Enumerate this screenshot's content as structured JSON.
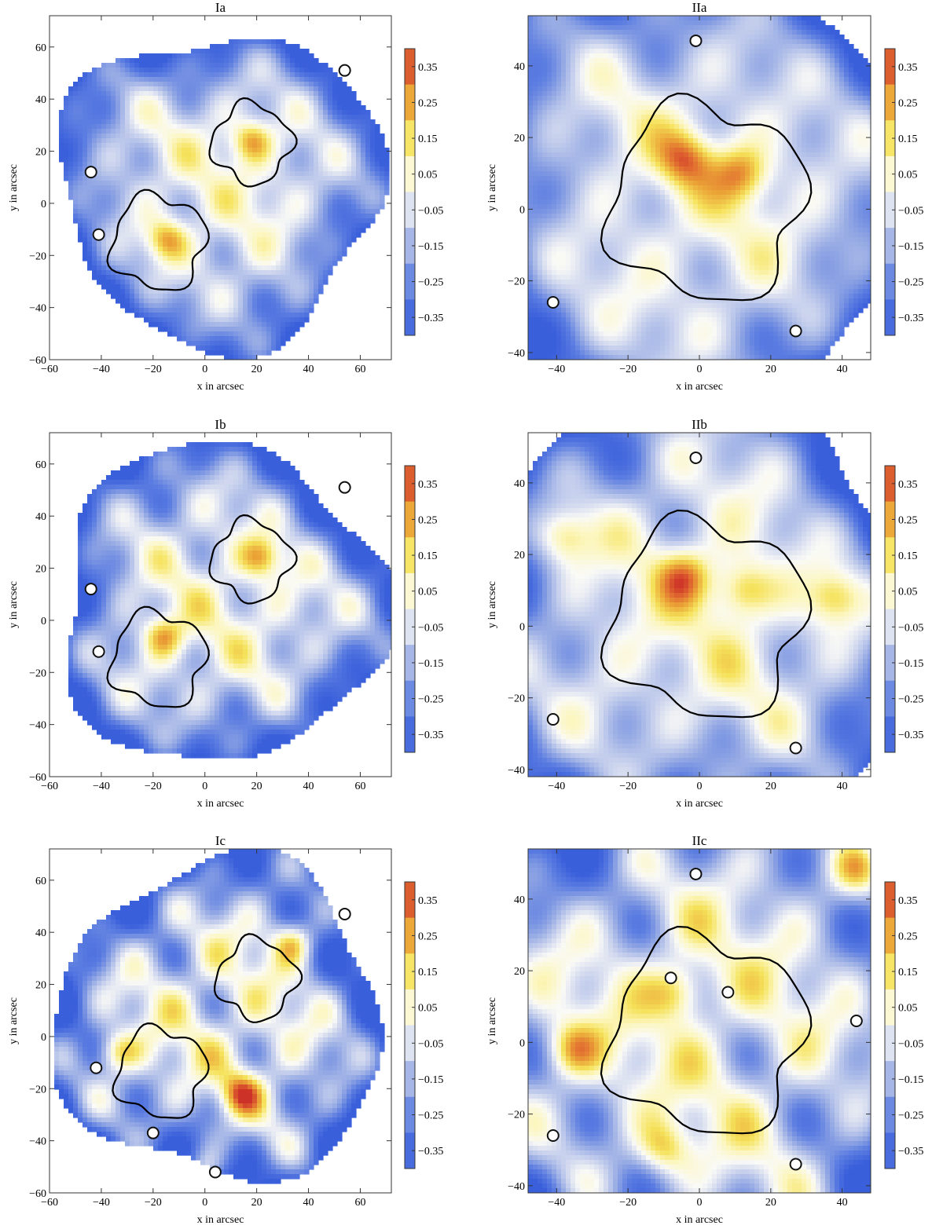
{
  "chart_data": [
    {
      "type": "heatmap",
      "id": "Ia",
      "title": "Ia",
      "xlabel": "x in arcsec",
      "ylabel": "y in arcsec",
      "xlim": [
        -60,
        72
      ],
      "ylim": [
        -60,
        72
      ],
      "xticks": [
        -60,
        -40,
        -20,
        0,
        20,
        40,
        60
      ],
      "yticks": [
        -60,
        -40,
        -20,
        0,
        20,
        40,
        60
      ],
      "colorbar": {
        "labels": [
          "0.35",
          "0.25",
          "0.15",
          "0.05",
          "−0.05",
          "−0.15",
          "−0.25",
          "−0.35"
        ],
        "range": [
          -0.4,
          0.4
        ]
      },
      "field_scale": 0.55,
      "shape": {
        "cx": 6,
        "cy": 6,
        "rx": 62,
        "ry": 60
      },
      "curves": [
        {
          "cx": -18,
          "cy": -15,
          "r": 18
        },
        {
          "cx": 18,
          "cy": 23,
          "r": 15
        }
      ],
      "hot": [
        [
          -15,
          -14
        ],
        [
          18,
          24
        ]
      ],
      "holes": [
        [
          54,
          51
        ],
        [
          -44,
          12
        ],
        [
          -41,
          -12
        ]
      ]
    },
    {
      "type": "heatmap",
      "id": "IIa",
      "title": "IIa",
      "xlabel": "x in arcsec",
      "ylabel": "y in arcsec",
      "xlim": [
        -48,
        48
      ],
      "ylim": [
        -42,
        54
      ],
      "xticks": [
        -40,
        -20,
        0,
        20,
        40
      ],
      "yticks": [
        -40,
        -20,
        0,
        20,
        40
      ],
      "colorbar": {
        "labels": [
          "0.35",
          "0.25",
          "0.15",
          "0.05",
          "−0.05",
          "−0.15",
          "−0.25",
          "−0.35"
        ],
        "range": [
          -0.4,
          0.4
        ]
      },
      "field_scale": 0.55,
      "shape": {
        "cx": 0,
        "cy": 4,
        "rx": 62,
        "ry": 64
      },
      "curves": [
        {
          "cx": 2,
          "cy": 2,
          "r": 27
        }
      ],
      "hot": [
        [
          -4,
          14
        ],
        [
          12,
          10
        ]
      ],
      "holes": [
        [
          -1,
          47
        ],
        [
          -41,
          -26
        ],
        [
          27,
          -34
        ]
      ]
    },
    {
      "type": "heatmap",
      "id": "Ib",
      "title": "Ib",
      "xlabel": "x in arcsec",
      "ylabel": "y in arcsec",
      "xlim": [
        -60,
        72
      ],
      "ylim": [
        -60,
        72
      ],
      "xticks": [
        -60,
        -40,
        -20,
        0,
        20,
        40,
        60
      ],
      "yticks": [
        -60,
        -40,
        -20,
        0,
        20,
        40,
        60
      ],
      "colorbar": {
        "labels": [
          "0.35",
          "0.25",
          "0.15",
          "0.05",
          "−0.05",
          "−0.15",
          "−0.25",
          "−0.35"
        ],
        "range": [
          -0.4,
          0.4
        ]
      },
      "field_scale": 0.62,
      "shape": {
        "cx": 6,
        "cy": 6,
        "rx": 63,
        "ry": 61
      },
      "curves": [
        {
          "cx": -18,
          "cy": -15,
          "r": 18
        },
        {
          "cx": 18,
          "cy": 23,
          "r": 15
        }
      ],
      "hot": [
        [
          -16,
          -6
        ],
        [
          22,
          24
        ]
      ],
      "holes": [
        [
          54,
          51
        ],
        [
          -44,
          12
        ],
        [
          -41,
          -12
        ]
      ]
    },
    {
      "type": "heatmap",
      "id": "IIb",
      "title": "IIb",
      "xlabel": "x in arcsec",
      "ylabel": "y in arcsec",
      "xlim": [
        -48,
        48
      ],
      "ylim": [
        -42,
        54
      ],
      "xticks": [
        -40,
        -20,
        0,
        20,
        40
      ],
      "yticks": [
        -40,
        -20,
        0,
        20,
        40
      ],
      "colorbar": {
        "labels": [
          "0.35",
          "0.25",
          "0.15",
          "0.05",
          "−0.05",
          "−0.15",
          "−0.25",
          "−0.35"
        ],
        "range": [
          -0.4,
          0.4
        ]
      },
      "field_scale": 0.62,
      "shape": {
        "cx": 0,
        "cy": 4,
        "rx": 62,
        "ry": 64
      },
      "curves": [
        {
          "cx": 2,
          "cy": 2,
          "r": 27
        }
      ],
      "hot": [
        [
          -4,
          14
        ],
        [
          12,
          10
        ],
        [
          -38,
          25
        ],
        [
          38,
          8
        ]
      ],
      "holes": [
        [
          -1,
          47
        ],
        [
          -41,
          -26
        ],
        [
          27,
          -34
        ]
      ]
    },
    {
      "type": "heatmap",
      "id": "Ic",
      "title": "Ic",
      "xlabel": "x in arcsec",
      "ylabel": "y in arcsec",
      "xlim": [
        -60,
        72
      ],
      "ylim": [
        -60,
        72
      ],
      "xticks": [
        -60,
        -40,
        -20,
        0,
        20,
        40,
        60
      ],
      "yticks": [
        -60,
        -40,
        -20,
        0,
        20,
        40,
        60
      ],
      "colorbar": {
        "labels": [
          "0.35",
          "0.25",
          "0.15",
          "0.05",
          "−0.05",
          "−0.15",
          "−0.25",
          "−0.35"
        ],
        "range": [
          -0.4,
          0.4
        ]
      },
      "field_scale": 0.8,
      "shape": {
        "cx": 6,
        "cy": 6,
        "rx": 63,
        "ry": 61
      },
      "curves": [
        {
          "cx": -17,
          "cy": -14,
          "r": 17
        },
        {
          "cx": 20,
          "cy": 22,
          "r": 15
        }
      ],
      "hot": [
        [
          -44,
          -52
        ],
        [
          0,
          -52
        ],
        [
          -34,
          -6
        ],
        [
          14,
          -22
        ],
        [
          34,
          36
        ]
      ],
      "holes": [
        [
          54,
          47
        ],
        [
          -42,
          -12
        ],
        [
          4,
          -52
        ],
        [
          -20,
          -37
        ]
      ]
    },
    {
      "type": "heatmap",
      "id": "IIc",
      "title": "IIc",
      "xlabel": "x in arcsec",
      "ylabel": "y in arcsec",
      "xlim": [
        -48,
        48
      ],
      "ylim": [
        -42,
        54
      ],
      "xticks": [
        -40,
        -20,
        0,
        20,
        40
      ],
      "yticks": [
        -40,
        -20,
        0,
        20,
        40
      ],
      "colorbar": {
        "labels": [
          "0.35",
          "0.25",
          "0.15",
          "0.05",
          "−0.05",
          "−0.15",
          "−0.25",
          "−0.35"
        ],
        "range": [
          -0.4,
          0.4
        ]
      },
      "field_scale": 0.8,
      "shape": {
        "cx": 0,
        "cy": 4,
        "rx": 70,
        "ry": 70
      },
      "curves": [
        {
          "cx": 2,
          "cy": 2,
          "r": 27
        }
      ],
      "hot": [
        [
          44,
          48
        ],
        [
          -36,
          -2
        ],
        [
          -10,
          -30
        ],
        [
          -6,
          14
        ]
      ],
      "holes": [
        [
          -1,
          47
        ],
        [
          -41,
          -26
        ],
        [
          27,
          -34
        ],
        [
          44,
          6
        ],
        [
          -8,
          18
        ],
        [
          8,
          14
        ]
      ]
    }
  ]
}
